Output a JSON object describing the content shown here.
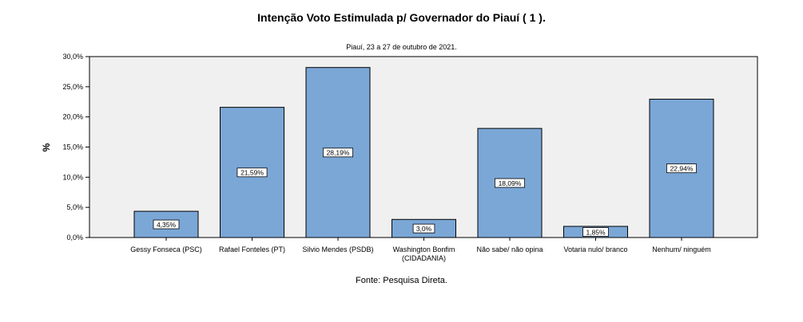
{
  "chart_data": {
    "type": "bar",
    "title": "Intenção Voto Estimulada p/ Governador do Piauí  ( 1 ).",
    "subtitle": "Piauí, 23 a 27 de outubro de 2021.",
    "source": "Fonte: Pesquisa Direta.",
    "ylabel": "%",
    "xlabel": "",
    "ylim": [
      0,
      30
    ],
    "yticks": [
      "0,0%",
      "5,0%",
      "10,0%",
      "15,0%",
      "20,0%",
      "25,0%",
      "30,0%"
    ],
    "ytick_values": [
      0,
      5,
      10,
      15,
      20,
      25,
      30
    ],
    "categories": [
      [
        "Gessy Fonseca (PSC)"
      ],
      [
        "Rafael Fonteles (PT)"
      ],
      [
        "Silvio Mendes (PSDB)"
      ],
      [
        "Washington Bonfim",
        "(CIDADANIA)"
      ],
      [
        "Não sabe/ não opina"
      ],
      [
        "Votaria nulo/ branco"
      ],
      [
        "Nenhum/ ninguém"
      ]
    ],
    "values": [
      4.35,
      21.59,
      28.19,
      3.0,
      18.09,
      1.85,
      22.94
    ],
    "data_labels": [
      "4,35%",
      "21,59%",
      "28,19%",
      "3,0%",
      "18,09%",
      "1,85%",
      "22,94%"
    ],
    "grid": false,
    "colors": {
      "bar": "#7ba7d6",
      "bar_edge": "#000000",
      "plot_bg": "#f0f0f0",
      "label_bg": "#ffffff"
    }
  }
}
